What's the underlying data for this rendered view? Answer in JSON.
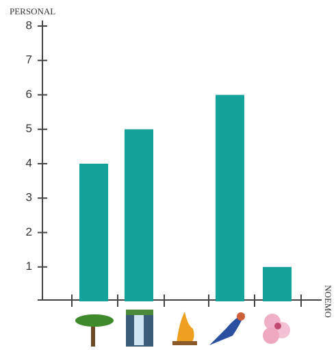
{
  "chart_data": {
    "type": "bar",
    "y_label": "PERSONAL",
    "x_label": "NOEMO",
    "categories": [
      null,
      null,
      null,
      null,
      null
    ],
    "values": [
      4,
      5,
      0,
      6,
      1
    ],
    "color": "#14a39a",
    "ylim": [
      0,
      8
    ],
    "yticks": [
      1,
      2,
      3,
      4,
      5,
      6,
      7,
      8
    ]
  }
}
